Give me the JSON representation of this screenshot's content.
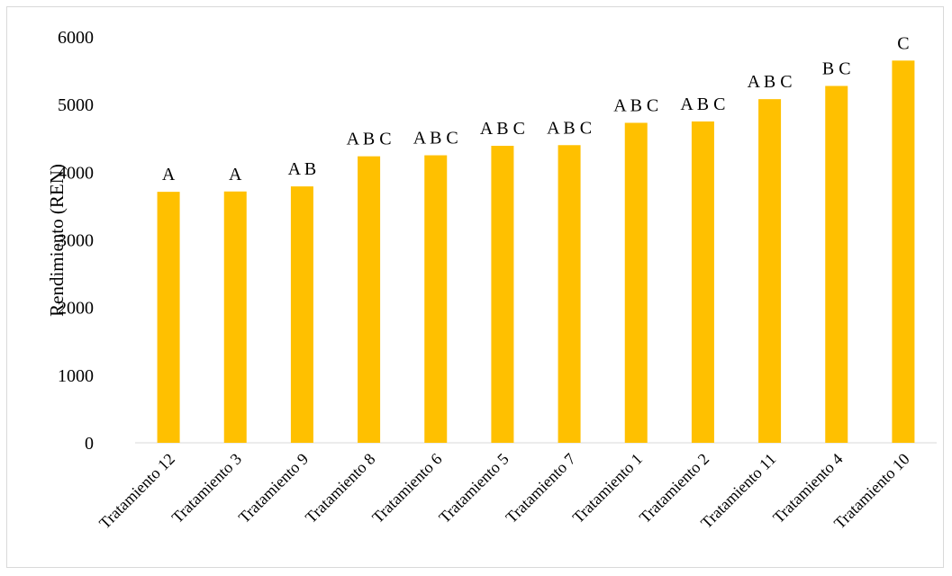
{
  "chart_data": {
    "type": "bar",
    "title": "",
    "xlabel": "",
    "ylabel": "Rendimiento  (REN)",
    "ylim": [
      0,
      6000
    ],
    "yticks": [
      0,
      1000,
      2000,
      3000,
      4000,
      5000,
      6000
    ],
    "grid": false,
    "legend": "none",
    "bar_color": "#FFC000",
    "categories": [
      "Tratamiento 12",
      "Tratamiento 3",
      "Tratamiento 9",
      "Tratamiento 8",
      "Tratamiento 6",
      "Tratamiento 5",
      "Tratamiento 7",
      "Tratamiento 1",
      "Tratamiento 2",
      "Tratamiento 11",
      "Tratamiento 4",
      "Tratamiento 10"
    ],
    "values": [
      3710,
      3715,
      3790,
      4235,
      4250,
      4390,
      4400,
      4730,
      4750,
      5080,
      5275,
      5650
    ],
    "annotations": [
      "A",
      "A",
      "A B",
      "A B C",
      "A B C",
      "A B C",
      "A B C",
      "A B C",
      "A B C",
      "A B C",
      "B C",
      "C"
    ]
  }
}
